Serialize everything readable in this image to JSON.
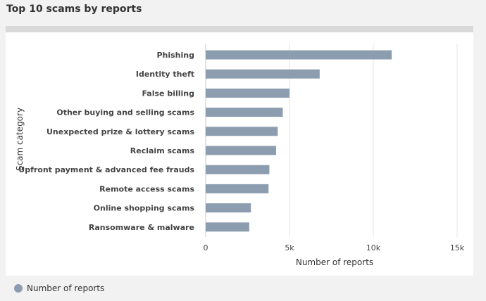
{
  "header": {
    "title": "Top 10 scams by reports"
  },
  "colors": {
    "bar": "#8d9db0",
    "grid": "#e6e6e6",
    "axis": "#c8c8c8"
  },
  "chart_data": {
    "type": "bar",
    "orientation": "horizontal",
    "title": "Top 10 scams by reports",
    "xlabel": "Number of reports",
    "ylabel": "Scam category",
    "categories": [
      "Phishing",
      "Identity theft",
      "False billing",
      "Other buying and selling scams",
      "Unexpected prize & lottery scams",
      "Reclaim scams",
      "Upfront payment & advanced fee frauds",
      "Remote access scams",
      "Online shopping scams",
      "Ransomware & malware"
    ],
    "series": [
      {
        "name": "Number of reports",
        "values": [
          11100,
          6800,
          5000,
          4600,
          4300,
          4200,
          3800,
          3750,
          2700,
          2600
        ]
      }
    ],
    "xlim": [
      0,
      15000
    ],
    "xticks": [
      0,
      5000,
      10000,
      15000
    ],
    "xtick_labels": [
      "0",
      "5k",
      "10k",
      "15k"
    ],
    "grid": true,
    "legend": {
      "position": "bottom-left",
      "label": "Number of reports"
    }
  }
}
